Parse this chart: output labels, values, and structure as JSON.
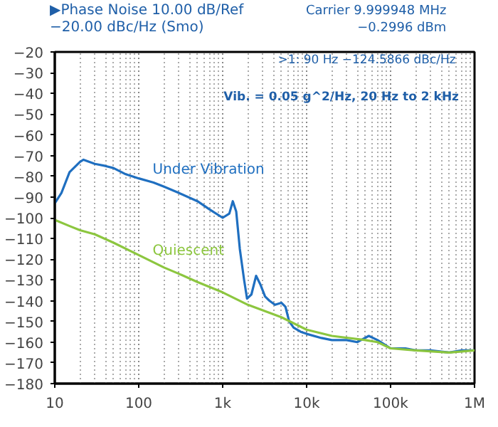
{
  "chart_data": {
    "type": "line",
    "title": "▶Phase Noise 10.00 dB/Ref",
    "subtitle": "−20.00 dBc/Hz (Smo)",
    "annotations": [
      "Carrier 9.999948 MHz",
      "−0.2996 dBm",
      ">1:  90 Hz   −124.5866 dBc/Hz",
      "Vib. = 0.05 g^2/Hz, 20 Hz to 2 kHz"
    ],
    "log": "x",
    "grid": "x",
    "line_style": "solid",
    "xlim": [
      10,
      1000000
    ],
    "xticks": [
      {
        "value": 10,
        "label": "10"
      },
      {
        "value": 100,
        "label": "100"
      },
      {
        "value": 1000,
        "label": "1k"
      },
      {
        "value": 10000,
        "label": "10k"
      },
      {
        "value": 100000,
        "label": "100k"
      },
      {
        "value": 1000000,
        "label": "1M"
      }
    ],
    "ylim": [
      -180,
      -20
    ],
    "yticks": [
      {
        "value": -20,
        "label": "−20"
      },
      {
        "value": -30,
        "label": "−30"
      },
      {
        "value": -40,
        "label": "−40"
      },
      {
        "value": -50,
        "label": "−50"
      },
      {
        "value": -60,
        "label": "−60"
      },
      {
        "value": -70,
        "label": "−70"
      },
      {
        "value": -80,
        "label": "−80"
      },
      {
        "value": -90,
        "label": "−90"
      },
      {
        "value": -100,
        "label": "−100"
      },
      {
        "value": -110,
        "label": "−110"
      },
      {
        "value": -120,
        "label": "−120"
      },
      {
        "value": -130,
        "label": "−130"
      },
      {
        "value": -140,
        "label": "−140"
      },
      {
        "value": -150,
        "label": "−150"
      },
      {
        "value": -160,
        "label": "−160"
      },
      {
        "value": -170,
        "label": "−170"
      },
      {
        "value": -180,
        "label": "−180"
      }
    ],
    "series": [
      {
        "name": "Under Vibration",
        "color": "#1f6fc0",
        "x": [
          10,
          12,
          15,
          20,
          22,
          30,
          40,
          50,
          70,
          100,
          150,
          200,
          300,
          500,
          700,
          1000,
          1200,
          1320,
          1450,
          1600,
          1800,
          1950,
          2200,
          2500,
          2800,
          3200,
          3600,
          4200,
          5000,
          5600,
          6200,
          7000,
          8500,
          10000,
          15000,
          20000,
          30000,
          40000,
          55000,
          70000,
          100000,
          150000,
          200000,
          300000,
          500000,
          700000,
          1000000
        ],
        "values": [
          -93,
          -88,
          -78,
          -73,
          -72,
          -74,
          -75,
          -76,
          -79,
          -81,
          -83,
          -85,
          -88,
          -92,
          -96,
          -100,
          -98,
          -92,
          -97,
          -115,
          -130,
          -139,
          -137,
          -128,
          -132,
          -138,
          -140,
          -142,
          -141,
          -143,
          -150,
          -153,
          -155,
          -156,
          -158,
          -159,
          -159,
          -160,
          -157,
          -159,
          -163,
          -163,
          -164,
          -164,
          -165,
          -164,
          -164
        ]
      },
      {
        "name": "Quiescent",
        "color": "#8cc63f",
        "x": [
          10,
          15,
          20,
          30,
          50,
          100,
          200,
          300,
          500,
          1000,
          2000,
          5000,
          10000,
          20000,
          50000,
          70000,
          100000,
          200000,
          500000,
          1000000
        ],
        "values": [
          -101,
          -104,
          -106,
          -108,
          -112,
          -118,
          -124,
          -127,
          -131,
          -136,
          -142,
          -148,
          -154,
          -157,
          -159,
          -160,
          -163,
          -164,
          -165,
          -164
        ]
      }
    ]
  }
}
